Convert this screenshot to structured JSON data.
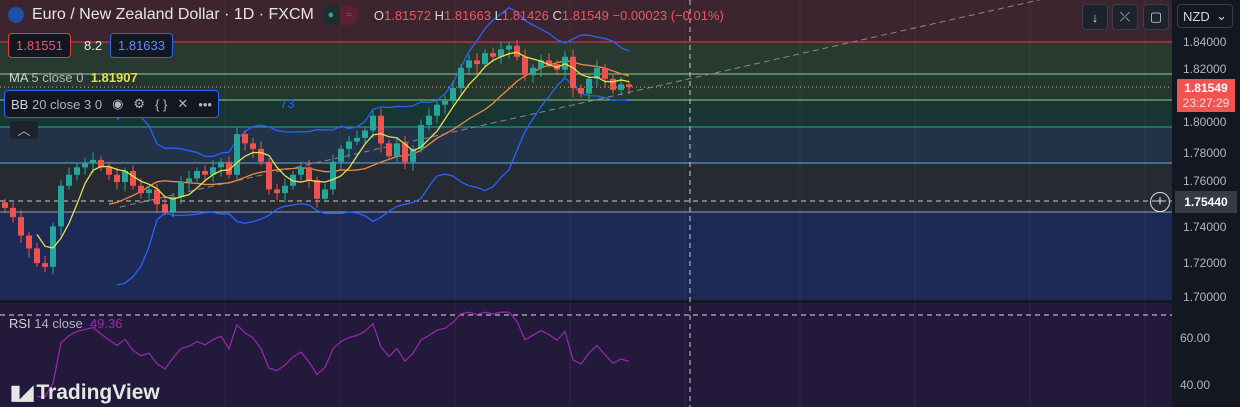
{
  "header": {
    "title": "Euro / New Zealand Dollar · 1D · FXCM",
    "o_label": "O",
    "o": "1.81572",
    "h_label": "H",
    "h": "1.81663",
    "l_label": "L",
    "l": "1.81426",
    "c_label": "C",
    "c": "1.81549",
    "change": "−0.00023 (−0.01%)"
  },
  "trade": {
    "sell": "1.81551",
    "spread": "8.2",
    "buy": "1.81633"
  },
  "indicators": {
    "ma_label": "MA",
    "ma_params": "5 close 0",
    "ma_value": "1.81907",
    "bb_label": "BB",
    "bb_params": "20 close 3 0",
    "bb_value_tail": "73",
    "rsi_label": "RSI",
    "rsi_params": "14 close",
    "rsi_value": "49.36"
  },
  "toolbar": {
    "currency": "NZD"
  },
  "price_axis": {
    "ticks": [
      "1.84000",
      "1.82000",
      "1.80000",
      "1.78000",
      "1.76000",
      "1.74000",
      "1.72000",
      "1.70000"
    ],
    "last_price": "1.81549",
    "countdown": "23:27:29",
    "crosshair_price": "1.75440"
  },
  "rsi_axis": {
    "ticks": [
      "60.00",
      "40.00"
    ]
  },
  "branding": "TradingView",
  "colors": {
    "up": "#26a69a",
    "down": "#ef5350",
    "ma": "#e8e04a",
    "ma20": "#f0883e",
    "bb": "#2962ff",
    "rsi": "#9c27b0"
  },
  "chart_data": {
    "type": "candlestick",
    "symbol": "EURNZD",
    "interval": "1D",
    "ylim": [
      1.7,
      1.845
    ],
    "rsi_ylim": [
      30,
      72
    ],
    "closes": [
      1.75,
      1.745,
      1.735,
      1.728,
      1.72,
      1.718,
      1.74,
      1.762,
      1.768,
      1.772,
      1.774,
      1.776,
      1.772,
      1.768,
      1.764,
      1.77,
      1.762,
      1.758,
      1.76,
      1.752,
      1.748,
      1.756,
      1.764,
      1.766,
      1.77,
      1.768,
      1.772,
      1.775,
      1.768,
      1.79,
      1.785,
      1.782,
      1.775,
      1.76,
      1.758,
      1.762,
      1.768,
      1.772,
      1.765,
      1.755,
      1.76,
      1.775,
      1.782,
      1.786,
      1.788,
      1.792,
      1.8,
      1.785,
      1.778,
      1.785,
      1.775,
      1.782,
      1.795,
      1.8,
      1.806,
      1.808,
      1.815,
      1.826,
      1.83,
      1.828,
      1.834,
      1.832,
      1.836,
      1.838,
      1.832,
      1.822,
      1.826,
      1.83,
      1.828,
      1.825,
      1.832,
      1.815,
      1.812,
      1.82,
      1.826,
      1.82,
      1.814,
      1.817,
      1.8155
    ],
    "last": {
      "open": 1.81572,
      "high": 1.81663,
      "low": 1.81426,
      "close": 1.81549
    }
  }
}
